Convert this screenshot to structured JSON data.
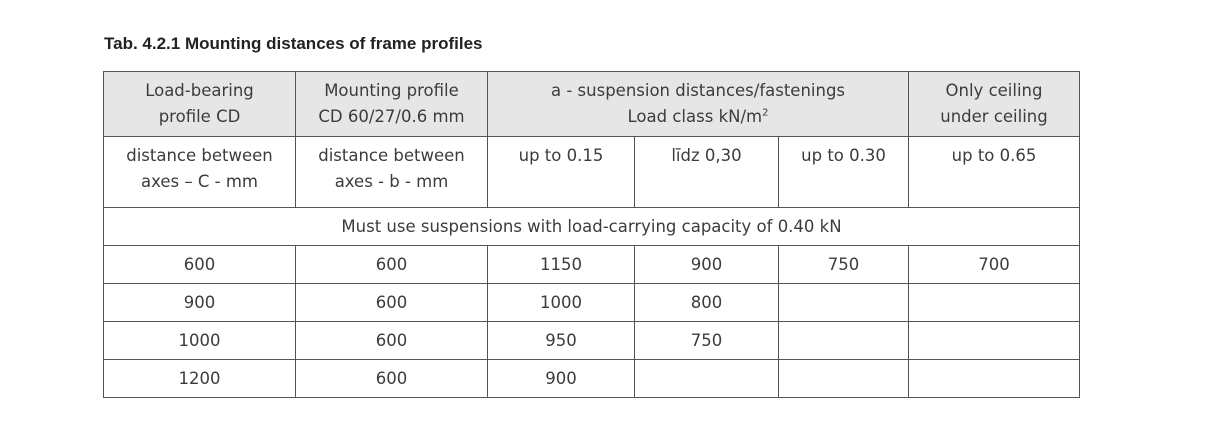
{
  "title": "Tab. 4.2.1 Mounting distances of frame profiles",
  "header": {
    "col1_l1": "Load-bearing",
    "col1_l2": "profile CD",
    "col2_l1": "Mounting profile",
    "col2_l2": "CD 60/27/0.6 mm",
    "col3_l1": "a - suspension distances/fastenings",
    "col3_l2": "Load class kN/m",
    "col3_sup": "2",
    "col4_l1": "Only ceiling",
    "col4_l2": "under ceiling"
  },
  "subheader": {
    "col1_l1": "distance between",
    "col1_l2": "axes  – C - mm",
    "col2_l1": "distance between",
    "col2_l2": "axes  - b - mm",
    "c3": "up to 0.15",
    "c4": "līdz 0,30",
    "c5": "up to 0.30",
    "c6": "up to 0.65"
  },
  "rows": [
    [
      "600",
      "600",
      "1150",
      "900",
      "750",
      "700"
    ],
    [
      "900",
      "600",
      "1000",
      "800",
      "",
      ""
    ],
    [
      "1000",
      "600",
      "950",
      "750",
      "",
      ""
    ],
    [
      "1200",
      "600",
      "900",
      "",
      "",
      ""
    ]
  ],
  "footer": "Must use suspensions with load-carrying capacity of 0.40 kN"
}
